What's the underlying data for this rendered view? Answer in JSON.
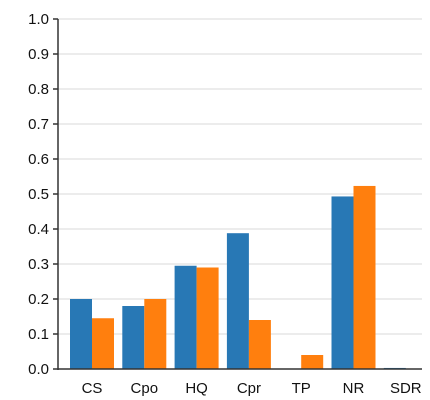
{
  "chart_data": {
    "type": "bar",
    "title": "",
    "xlabel": "",
    "ylabel": "",
    "categories": [
      "CS",
      "Cpo",
      "HQ",
      "Cpr",
      "TP",
      "NR",
      "SDR"
    ],
    "ylim": [
      0,
      1.0
    ],
    "yticks": [
      "0.0",
      "0.1",
      "0.2",
      "0.3",
      "0.4",
      "0.5",
      "0.6",
      "0.7",
      "0.8",
      "0.9",
      "1.0"
    ],
    "grid": true,
    "legend": "none",
    "series": [
      {
        "color": "#2878b5",
        "values": [
          0.2,
          0.18,
          0.295,
          0.388,
          0.0,
          0.493,
          0.003
        ]
      },
      {
        "color": "#ff7f0e",
        "values": [
          0.145,
          0.2,
          0.29,
          0.14,
          0.04,
          0.523,
          0.0
        ]
      }
    ]
  }
}
